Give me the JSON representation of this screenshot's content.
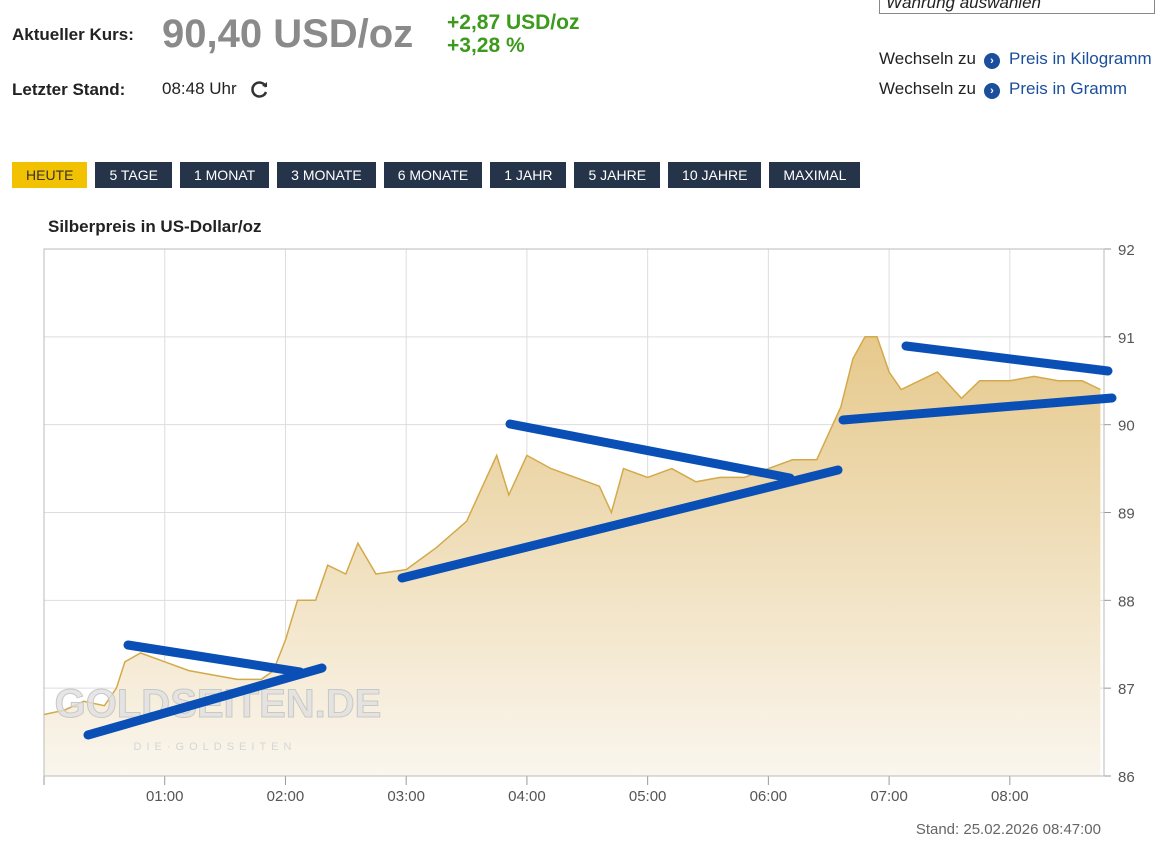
{
  "header": {
    "price_label": "Aktueller Kurs:",
    "price": "90,40 USD/oz",
    "change_abs": "+2,87 USD/oz",
    "change_pct": "+3,28 %",
    "time_label": "Letzter Stand:",
    "time": "08:48 Uhr",
    "currency_select": "Währung auswählen",
    "switch": [
      {
        "prefix": "Wechseln zu",
        "link": "Preis in Kilogramm"
      },
      {
        "prefix": "Wechseln zu",
        "link": "Preis in Gramm"
      }
    ]
  },
  "ranges": [
    "HEUTE",
    "5 TAGE",
    "1 MONAT",
    "3 MONATE",
    "6 MONATE",
    "1 JAHR",
    "5 JAHRE",
    "10 JAHRE",
    "MAXIMAL"
  ],
  "chart_data": {
    "type": "area",
    "title": "Silberpreis in US-Dollar/oz",
    "footer": "Stand: 25.02.2026 08:47:00",
    "watermark": "GOLDSEITEN.DE",
    "watermark_sub": "DIE·GOLDSEITEN",
    "x": [
      0,
      0.17,
      0.33,
      0.5,
      0.6,
      0.67,
      0.8,
      1.0,
      1.2,
      1.4,
      1.6,
      1.8,
      1.9,
      2.0,
      2.1,
      2.25,
      2.35,
      2.5,
      2.6,
      2.75,
      3.0,
      3.25,
      3.5,
      3.6,
      3.75,
      3.85,
      4.0,
      4.2,
      4.4,
      4.6,
      4.7,
      4.8,
      5.0,
      5.2,
      5.4,
      5.6,
      5.8,
      6.0,
      6.2,
      6.4,
      6.5,
      6.6,
      6.7,
      6.8,
      6.9,
      7.0,
      7.1,
      7.25,
      7.4,
      7.6,
      7.75,
      8.0,
      8.2,
      8.4,
      8.6,
      8.75
    ],
    "series": [
      {
        "name": "Silberpreis",
        "color": "#d4a94b",
        "values": [
          86.7,
          86.75,
          86.85,
          86.8,
          87.0,
          87.3,
          87.4,
          87.3,
          87.2,
          87.15,
          87.1,
          87.1,
          87.2,
          87.55,
          88.0,
          88.0,
          88.4,
          88.3,
          88.65,
          88.3,
          88.35,
          88.6,
          88.9,
          89.2,
          89.65,
          89.2,
          89.65,
          89.5,
          89.4,
          89.3,
          89.0,
          89.5,
          89.4,
          89.5,
          89.35,
          89.4,
          89.4,
          89.5,
          89.6,
          89.6,
          89.9,
          90.2,
          90.75,
          91.0,
          91.0,
          90.6,
          90.4,
          90.5,
          90.6,
          90.3,
          90.5,
          90.5,
          90.55,
          90.5,
          90.5,
          90.4
        ]
      }
    ],
    "xlim": [
      0,
      8.78
    ],
    "xticks": [
      {
        "value": 1,
        "label": "01:00"
      },
      {
        "value": 2,
        "label": "02:00"
      },
      {
        "value": 3,
        "label": "03:00"
      },
      {
        "value": 4,
        "label": "04:00"
      },
      {
        "value": 5,
        "label": "05:00"
      },
      {
        "value": 6,
        "label": "06:00"
      },
      {
        "value": 7,
        "label": "07:00"
      },
      {
        "value": 8,
        "label": "08:00"
      }
    ],
    "ylim": [
      86,
      92
    ],
    "yticks": [
      86,
      87,
      88,
      89,
      90,
      91,
      92
    ],
    "grid": true
  }
}
